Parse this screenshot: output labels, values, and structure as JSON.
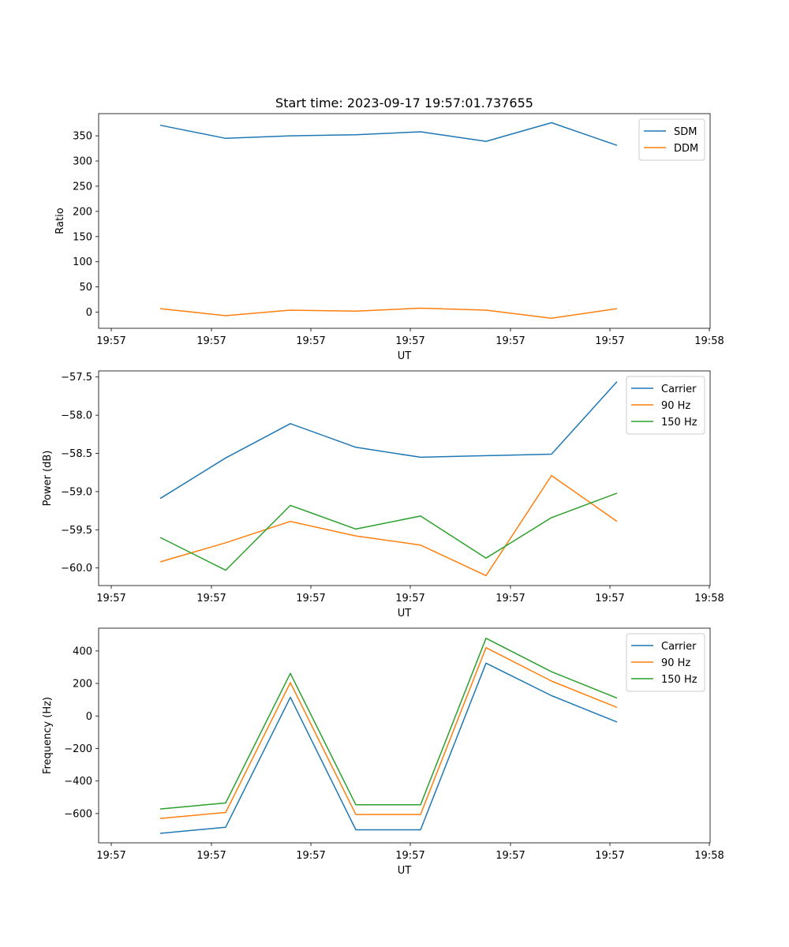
{
  "chart_data": [
    {
      "type": "line",
      "title": "Start time: 2023-09-17 19:57:01.737655",
      "xlabel": "UT",
      "ylabel": "Ratio",
      "x_tick_labels": [
        "19:57",
        "19:57",
        "19:57",
        "19:57",
        "19:57",
        "19:57",
        "19:58"
      ],
      "yticks": [
        0,
        50,
        100,
        150,
        200,
        250,
        300,
        350
      ],
      "ytick_labels": [
        "0",
        "50",
        "100",
        "150",
        "200",
        "250",
        "300",
        "350"
      ],
      "ylim": [
        -32,
        394
      ],
      "legend_position": "top-right",
      "series": [
        {
          "name": "SDM",
          "color": "#1f77b4",
          "values": [
            371,
            345,
            350,
            352,
            358,
            339,
            376,
            331
          ]
        },
        {
          "name": "DDM",
          "color": "#ff7f0e",
          "values": [
            7,
            -7,
            4,
            2,
            8,
            4,
            -12,
            7
          ]
        }
      ]
    },
    {
      "type": "line",
      "title": "",
      "xlabel": "UT",
      "ylabel": "Power (dB)",
      "x_tick_labels": [
        "19:57",
        "19:57",
        "19:57",
        "19:57",
        "19:57",
        "19:57",
        "19:58"
      ],
      "yticks": [
        -60.0,
        -59.5,
        -59.0,
        -58.5,
        -58.0,
        -57.5
      ],
      "ytick_labels": [
        "−60.0",
        "−59.5",
        "−59.0",
        "−58.5",
        "−58.0",
        "−57.5"
      ],
      "ylim": [
        -60.23,
        -57.42
      ],
      "legend_position": "top-right",
      "series": [
        {
          "name": "Carrier",
          "color": "#1f77b4",
          "values": [
            -59.09,
            -58.56,
            -58.11,
            -58.42,
            -58.55,
            -58.53,
            -58.51,
            -57.56
          ]
        },
        {
          "name": "90 Hz",
          "color": "#ff7f0e",
          "values": [
            -59.92,
            -59.67,
            -59.39,
            -59.58,
            -59.7,
            -60.1,
            -58.79,
            -59.39
          ]
        },
        {
          "name": "150 Hz",
          "color": "#2ca02c",
          "values": [
            -59.6,
            -60.03,
            -59.18,
            -59.49,
            -59.32,
            -59.87,
            -59.34,
            -59.02
          ]
        }
      ]
    },
    {
      "type": "line",
      "title": "",
      "xlabel": "UT",
      "ylabel": "Frequency (Hz)",
      "x_tick_labels": [
        "19:57",
        "19:57",
        "19:57",
        "19:57",
        "19:57",
        "19:57",
        "19:58"
      ],
      "yticks": [
        -600,
        -400,
        -200,
        0,
        200,
        400
      ],
      "ytick_labels": [
        "−600",
        "−400",
        "−200",
        "0",
        "200",
        "400"
      ],
      "ylim": [
        -780,
        540
      ],
      "legend_position": "top-right",
      "series": [
        {
          "name": "Carrier",
          "color": "#1f77b4",
          "values": [
            -722,
            -684,
            115,
            -700,
            -700,
            325,
            125,
            -37
          ]
        },
        {
          "name": "90 Hz",
          "color": "#ff7f0e",
          "values": [
            -630,
            -593,
            205,
            -606,
            -606,
            420,
            215,
            53
          ]
        },
        {
          "name": "150 Hz",
          "color": "#2ca02c",
          "values": [
            -572,
            -535,
            262,
            -546,
            -546,
            478,
            272,
            110
          ]
        }
      ]
    }
  ]
}
